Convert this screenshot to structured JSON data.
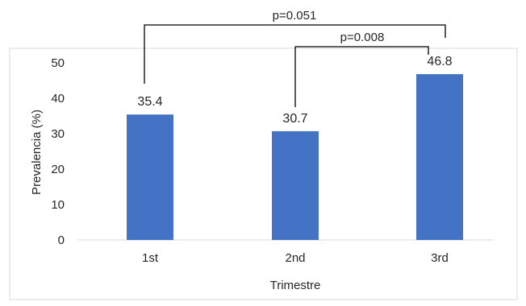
{
  "chart_data": {
    "type": "bar",
    "categories": [
      "1st",
      "2nd",
      "3rd"
    ],
    "values": [
      35.4,
      30.7,
      46.8
    ],
    "data_labels": [
      "35.4",
      "30.7",
      "46.8"
    ],
    "xlabel": "Trimestre",
    "ylabel": "Prevalencia (%)",
    "ylim": [
      0,
      50
    ],
    "yticks": [
      0,
      10,
      20,
      30,
      40,
      50
    ],
    "grid": false,
    "bar_color": "#4472c4",
    "annotations": [
      {
        "text": "p=0.051",
        "from": "1st",
        "to": "3rd"
      },
      {
        "text": "p=0.008",
        "from": "2nd",
        "to": "3rd"
      }
    ]
  }
}
